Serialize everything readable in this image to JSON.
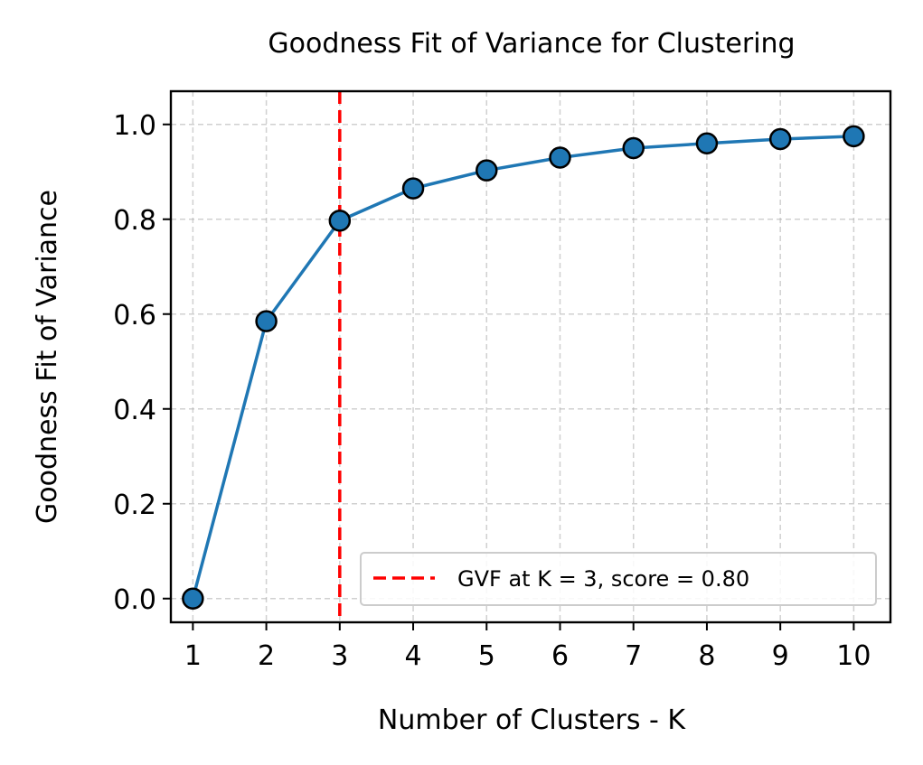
{
  "chart_data": {
    "type": "line",
    "title": "Goodness Fit of Variance for Clustering",
    "xlabel": "Number of Clusters - K",
    "ylabel": "Goodness Fit of Variance",
    "x": [
      1,
      2,
      3,
      4,
      5,
      6,
      7,
      8,
      9,
      10
    ],
    "series": [
      {
        "values": [
          0.0,
          0.585,
          0.797,
          0.865,
          0.903,
          0.93,
          0.95,
          0.96,
          0.969,
          0.975
        ],
        "color": "#1f77b4"
      }
    ],
    "xticks": [
      "1",
      "2",
      "3",
      "4",
      "5",
      "6",
      "7",
      "8",
      "9",
      "10"
    ],
    "yticks": [
      "0.0",
      "0.2",
      "0.4",
      "0.6",
      "0.8",
      "1.0"
    ],
    "xlim": [
      0.7,
      10.5
    ],
    "ylim": [
      -0.05,
      1.07
    ],
    "grid": true,
    "vline": {
      "x": 3,
      "color": "#ff0000",
      "style": "dashed"
    },
    "legend": {
      "position": "lower-right",
      "entries": [
        "GVF at K = 3, score = 0.80"
      ]
    }
  }
}
